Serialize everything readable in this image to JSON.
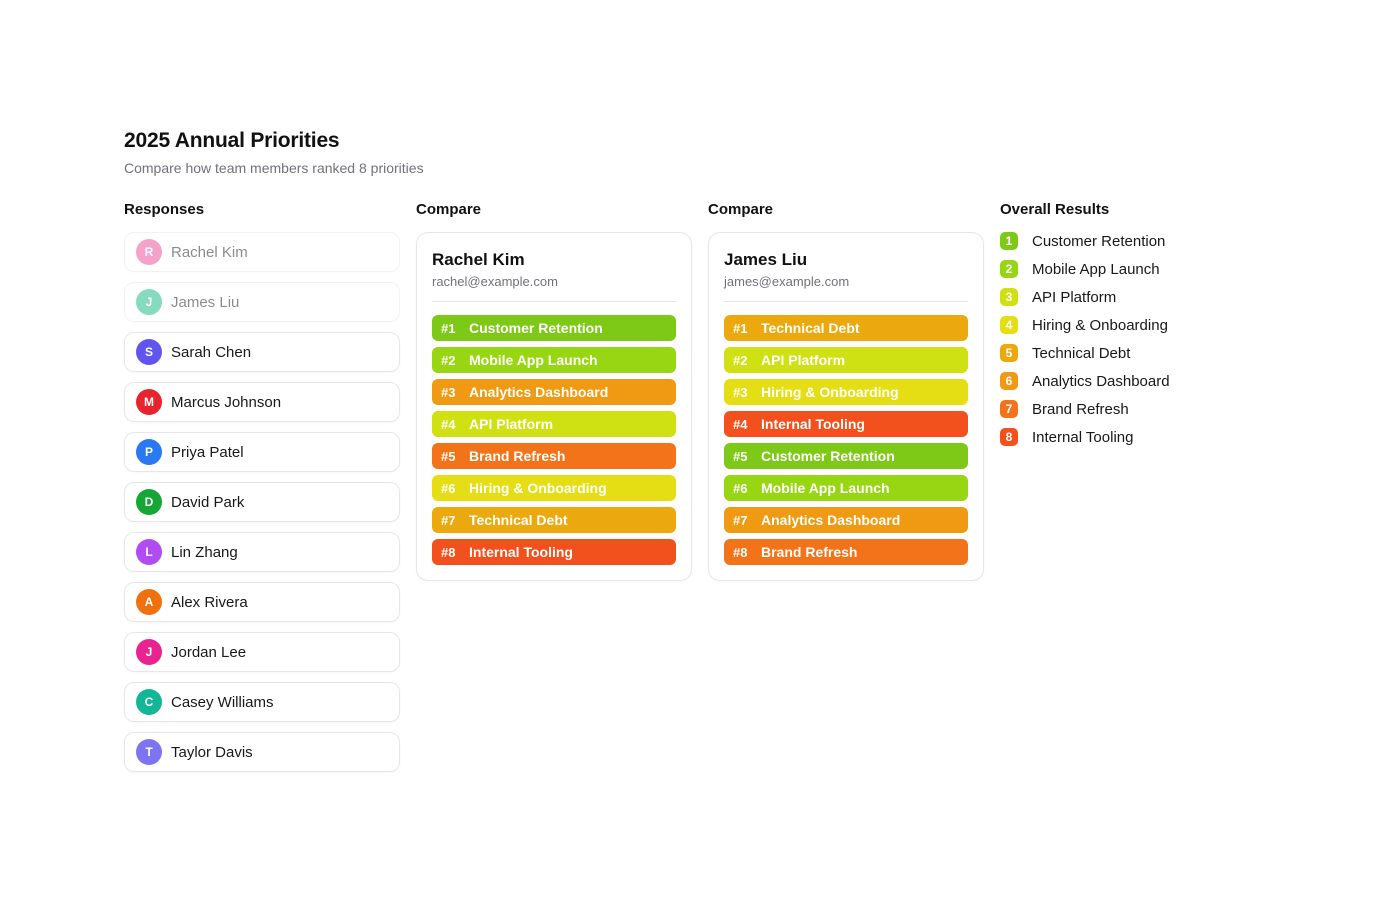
{
  "page": {
    "title": "2025 Annual Priorities",
    "subtitle": "Compare how team members ranked 8 priorities"
  },
  "responses": {
    "header": "Responses",
    "members": [
      {
        "name": "Rachel Kim",
        "initial": "R",
        "avatar_color": "#ec4899",
        "selected": true
      },
      {
        "name": "James Liu",
        "initial": "J",
        "avatar_color": "#10b981",
        "selected": true
      },
      {
        "name": "Sarah Chen",
        "initial": "S",
        "avatar_color": "#6155f0",
        "selected": false
      },
      {
        "name": "Marcus Johnson",
        "initial": "M",
        "avatar_color": "#e7232e",
        "selected": false
      },
      {
        "name": "Priya Patel",
        "initial": "P",
        "avatar_color": "#2979f2",
        "selected": false
      },
      {
        "name": "David Park",
        "initial": "D",
        "avatar_color": "#16a636",
        "selected": false
      },
      {
        "name": "Lin Zhang",
        "initial": "L",
        "avatar_color": "#b14cf2",
        "selected": false
      },
      {
        "name": "Alex Rivera",
        "initial": "A",
        "avatar_color": "#f0700f",
        "selected": false
      },
      {
        "name": "Jordan Lee",
        "initial": "J",
        "avatar_color": "#e9238f",
        "selected": false
      },
      {
        "name": "Casey Williams",
        "initial": "C",
        "avatar_color": "#11b797",
        "selected": false
      },
      {
        "name": "Taylor Davis",
        "initial": "T",
        "avatar_color": "#7d74f2",
        "selected": false
      }
    ]
  },
  "compare_cards": [
    {
      "header": "Compare",
      "name": "Rachel Kim",
      "email": "rachel@example.com",
      "rankings": [
        {
          "rank": "#1",
          "label": "Customer Retention",
          "color": "#7ec818"
        },
        {
          "rank": "#2",
          "label": "Mobile App Launch",
          "color": "#98d513"
        },
        {
          "rank": "#3",
          "label": "Analytics Dashboard",
          "color": "#f09912"
        },
        {
          "rank": "#4",
          "label": "API Platform",
          "color": "#cfe013"
        },
        {
          "rank": "#5",
          "label": "Brand Refresh",
          "color": "#f3731a"
        },
        {
          "rank": "#6",
          "label": "Hiring & Onboarding",
          "color": "#e5de14"
        },
        {
          "rank": "#7",
          "label": "Technical Debt",
          "color": "#eca90f"
        },
        {
          "rank": "#8",
          "label": "Internal Tooling",
          "color": "#f2501c"
        }
      ]
    },
    {
      "header": "Compare",
      "name": "James Liu",
      "email": "james@example.com",
      "rankings": [
        {
          "rank": "#1",
          "label": "Technical Debt",
          "color": "#eca90f"
        },
        {
          "rank": "#2",
          "label": "API Platform",
          "color": "#cfe013"
        },
        {
          "rank": "#3",
          "label": "Hiring & Onboarding",
          "color": "#e5de14"
        },
        {
          "rank": "#4",
          "label": "Internal Tooling",
          "color": "#f2501c"
        },
        {
          "rank": "#5",
          "label": "Customer Retention",
          "color": "#7ec818"
        },
        {
          "rank": "#6",
          "label": "Mobile App Launch",
          "color": "#98d513"
        },
        {
          "rank": "#7",
          "label": "Analytics Dashboard",
          "color": "#f09912"
        },
        {
          "rank": "#8",
          "label": "Brand Refresh",
          "color": "#f3731a"
        }
      ]
    }
  ],
  "overall": {
    "header": "Overall Results",
    "items": [
      {
        "rank": "1",
        "label": "Customer Retention",
        "color": "#7ec818"
      },
      {
        "rank": "2",
        "label": "Mobile App Launch",
        "color": "#98d513"
      },
      {
        "rank": "3",
        "label": "API Platform",
        "color": "#cfe013"
      },
      {
        "rank": "4",
        "label": "Hiring & Onboarding",
        "color": "#e5de14"
      },
      {
        "rank": "5",
        "label": "Technical Debt",
        "color": "#eca90f"
      },
      {
        "rank": "6",
        "label": "Analytics Dashboard",
        "color": "#f09912"
      },
      {
        "rank": "7",
        "label": "Brand Refresh",
        "color": "#f3731a"
      },
      {
        "rank": "8",
        "label": "Internal Tooling",
        "color": "#f2501c"
      }
    ]
  }
}
